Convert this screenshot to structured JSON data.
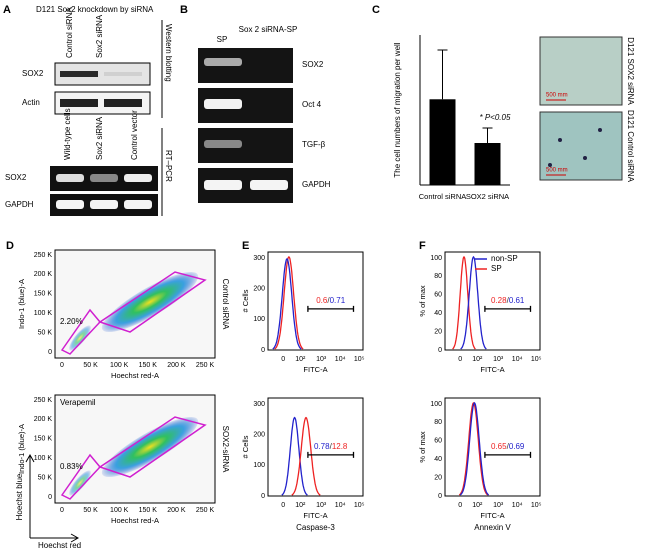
{
  "panel_a": {
    "letter": "A",
    "title": "D121 Sox2 knockdown by siRNA",
    "western": {
      "columns": [
        "Control siRNA",
        "Sox2 siRNA"
      ],
      "rows": [
        "SOX2",
        "Actin"
      ],
      "side": "Western blotting"
    },
    "rtpcr": {
      "columns": [
        "Wild-type cells",
        "Sox2 siRNA",
        "Control vector"
      ],
      "rows": [
        "SOX2",
        "GAPDH"
      ],
      "side": "RT–PCR"
    }
  },
  "panel_b": {
    "letter": "B",
    "columns": [
      "SP",
      "Sox 2 siRNA-SP"
    ],
    "rows": [
      "SOX2",
      "Oct 4",
      "TGF-β",
      "GAPDH"
    ]
  },
  "panel_c": {
    "letter": "C",
    "images": [
      {
        "label": "D121 SOX2 siRNA",
        "scale": "500 mm"
      },
      {
        "label": "D121 Control siRNA",
        "scale": "500 mm"
      }
    ]
  },
  "chart_data": {
    "type": "bar",
    "y_label": "The cell numbers of migration per well",
    "categories": [
      "Control siRNA",
      "SOX2 siRNA"
    ],
    "values": [
      20,
      9.8
    ],
    "errors": [
      11.5,
      3.5
    ],
    "color": "#000000",
    "ylim": [
      0,
      35
    ],
    "annotation": "* P<0.05"
  },
  "panel_d": {
    "letter": "D",
    "ticks": [
      "0",
      "50 K",
      "100 K",
      "150 K",
      "200 K",
      "250 K"
    ],
    "x_label": "Hoechst red-A",
    "y_label": "Indo-1 (blue)-A",
    "plots": [
      {
        "gate": "2.20%",
        "side": "Control siRNA"
      },
      {
        "gate": "0.83%",
        "side": "SOX2-siRNA",
        "note": "Verapemil"
      }
    ],
    "arrows": {
      "vertical": "Hoechst blue",
      "horizontal": "Hoechst red"
    }
  },
  "panel_e": {
    "letter": "E",
    "y_label": "# Cells",
    "yticks": [
      "0",
      "100",
      "200",
      "300"
    ],
    "xticks": [
      "0",
      "10²",
      "10³",
      "10⁴",
      "10⁵"
    ],
    "x_label": "FITC-A",
    "separator": "/",
    "plots": [
      {
        "red": "0.6",
        "blue": "0.71"
      },
      {
        "blue": "0.78",
        "red": "12.8",
        "marker": "Caspase-3"
      }
    ]
  },
  "panel_f": {
    "letter": "F",
    "y_label": "% of max",
    "yticks": [
      "0",
      "20",
      "40",
      "60",
      "80",
      "100"
    ],
    "xticks": [
      "0",
      "10²",
      "10³",
      "10⁴",
      "10⁵"
    ],
    "x_label": "FITC-A",
    "separator": "/",
    "legend": [
      {
        "name": "non-SP",
        "color": "#2222cc"
      },
      {
        "name": "SP",
        "color": "#ee2222"
      }
    ],
    "plots": [
      {
        "red": "0.28",
        "blue": "0.61"
      },
      {
        "red": "0.65",
        "blue": "0.69",
        "marker": "Annexin V"
      }
    ]
  }
}
